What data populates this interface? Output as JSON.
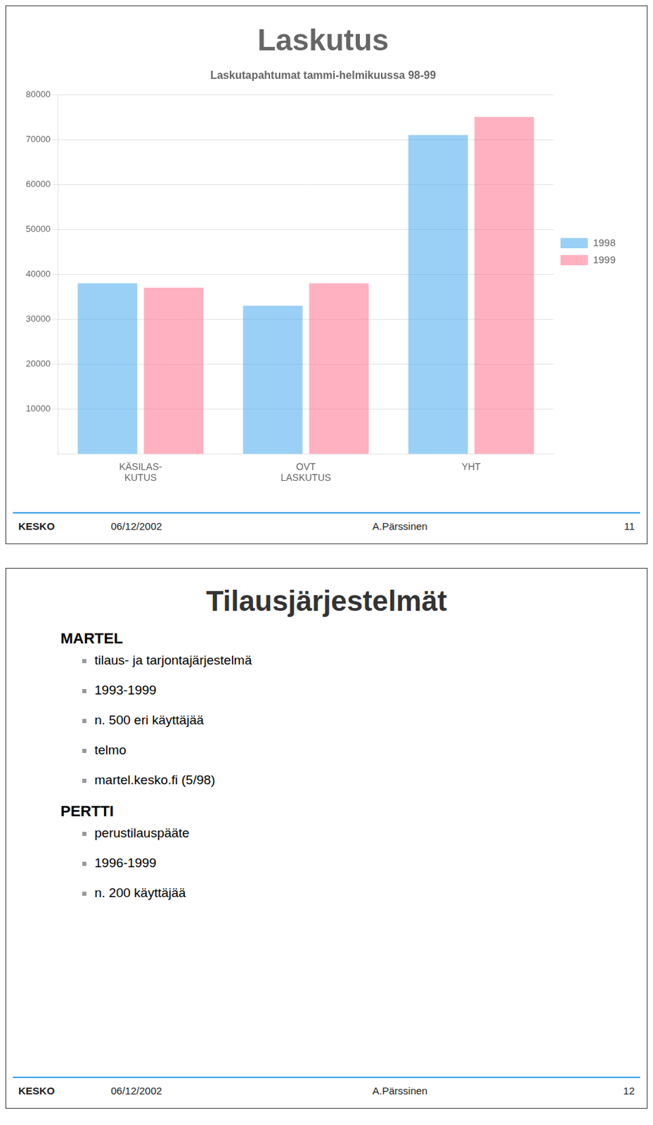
{
  "chart_data": {
    "type": "bar",
    "title": "Laskutus",
    "subtitle": "Laskutapahtumat tammi-helmikuussa 98-99",
    "categories": [
      "KÄSILAS-\nKUTUS",
      "OVT\nLASKUTUS",
      "YHT"
    ],
    "series": [
      {
        "name": "1998",
        "values": [
          38000,
          33000,
          71000
        ]
      },
      {
        "name": "1999",
        "values": [
          37000,
          38000,
          75000
        ]
      }
    ],
    "ylim": [
      0,
      80000
    ],
    "yticks": [
      10000,
      20000,
      30000,
      40000,
      50000,
      60000,
      70000,
      80000
    ],
    "grid": true,
    "legend": "right",
    "annotations": {
      "footer": [
        "KESKO",
        "06/12/2002",
        "A.Pärssinen",
        "11"
      ],
      "slide2": {
        "title": "Tilausjärjestelmät",
        "sections": [
          {
            "header": "MARTEL",
            "items": [
              "tilaus- ja tarjontajärjestelmä",
              "1993-1999",
              "n. 500 eri käyttäjää",
              "telmo",
              "martel.kesko.fi (5/98)"
            ]
          },
          {
            "header": "PERTTI",
            "items": [
              "perustilauspääte",
              "1996-1999",
              "n. 200 käyttäjää"
            ]
          }
        ],
        "footer": [
          "KESKO",
          "06/12/2002",
          "A.Pärssinen",
          "12"
        ]
      }
    }
  }
}
